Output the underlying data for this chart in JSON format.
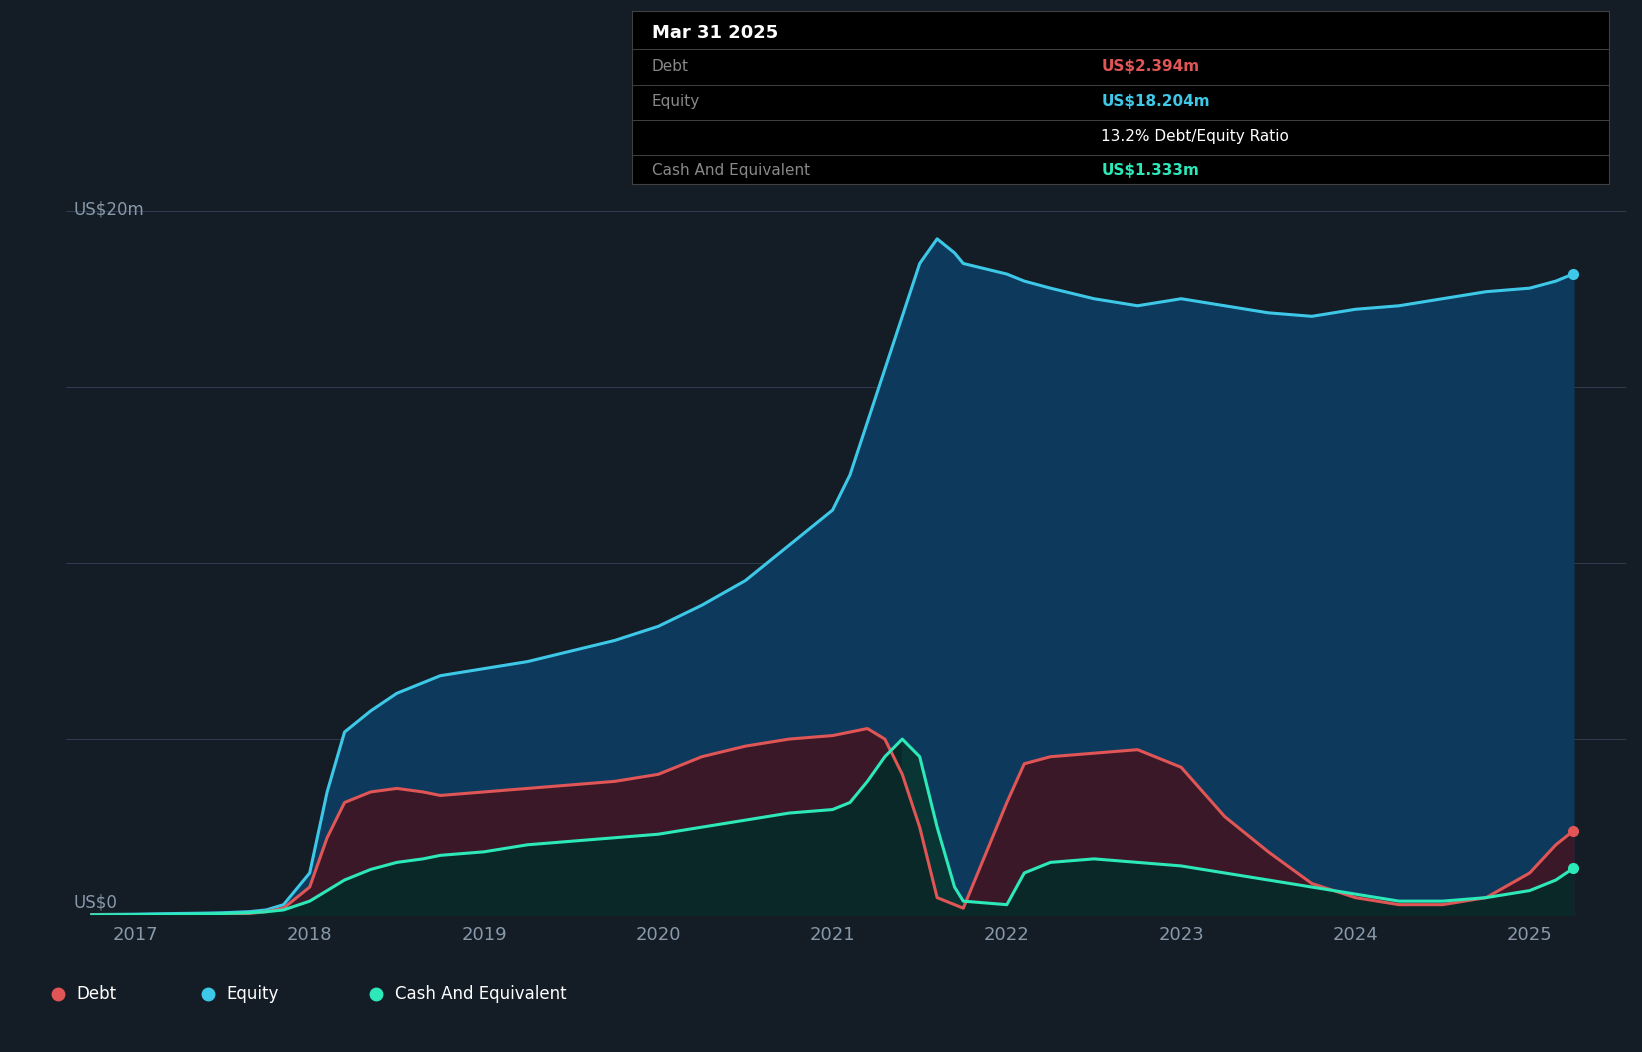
{
  "bg_color": "#141c26",
  "plot_bg_color": "#141c26",
  "grid_color": "#2e3d4f",
  "tooltip": {
    "date": "Mar 31 2025",
    "debt_label": "Debt",
    "debt_value": "US$2.394m",
    "equity_label": "Equity",
    "equity_value": "US$18.204m",
    "ratio_text": "13.2% Debt/Equity Ratio",
    "cash_label": "Cash And Equivalent",
    "cash_value": "US$1.333m"
  },
  "ylabel_top": "US$20m",
  "ylabel_bottom": "US$0",
  "xlim_start": 2016.6,
  "xlim_end": 2025.55,
  "ylim_min": 0,
  "ylim_max": 21.5,
  "debt_color": "#e05555",
  "equity_color": "#3ec8e8",
  "cash_color": "#2de8b8",
  "equity_fill_color": "#0d3a5c",
  "debt_fill_color": "#3a1828",
  "cash_fill_color": "#0a2828",
  "legend_bg": "#1e2a38",
  "x": [
    2016.75,
    2017.0,
    2017.1,
    2017.25,
    2017.4,
    2017.5,
    2017.65,
    2017.75,
    2017.85,
    2018.0,
    2018.1,
    2018.2,
    2018.35,
    2018.5,
    2018.65,
    2018.75,
    2019.0,
    2019.25,
    2019.5,
    2019.75,
    2020.0,
    2020.25,
    2020.5,
    2020.75,
    2021.0,
    2021.1,
    2021.2,
    2021.3,
    2021.4,
    2021.5,
    2021.6,
    2021.7,
    2021.75,
    2022.0,
    2022.1,
    2022.25,
    2022.5,
    2022.75,
    2023.0,
    2023.25,
    2023.5,
    2023.75,
    2024.0,
    2024.25,
    2024.5,
    2024.75,
    2025.0,
    2025.15,
    2025.25
  ],
  "equity": [
    0.02,
    0.03,
    0.04,
    0.05,
    0.06,
    0.07,
    0.1,
    0.15,
    0.3,
    1.2,
    3.5,
    5.2,
    5.8,
    6.3,
    6.6,
    6.8,
    7.0,
    7.2,
    7.5,
    7.8,
    8.2,
    8.8,
    9.5,
    10.5,
    11.5,
    12.5,
    14.0,
    15.5,
    17.0,
    18.5,
    19.2,
    18.8,
    18.5,
    18.2,
    18.0,
    17.8,
    17.5,
    17.3,
    17.5,
    17.3,
    17.1,
    17.0,
    17.2,
    17.3,
    17.5,
    17.7,
    17.8,
    18.0,
    18.204
  ],
  "debt": [
    0.01,
    0.01,
    0.01,
    0.02,
    0.02,
    0.03,
    0.05,
    0.1,
    0.2,
    0.8,
    2.2,
    3.2,
    3.5,
    3.6,
    3.5,
    3.4,
    3.5,
    3.6,
    3.7,
    3.8,
    4.0,
    4.5,
    4.8,
    5.0,
    5.1,
    5.2,
    5.3,
    5.0,
    4.0,
    2.5,
    0.5,
    0.3,
    0.2,
    3.2,
    4.3,
    4.5,
    4.6,
    4.7,
    4.2,
    2.8,
    1.8,
    0.9,
    0.5,
    0.3,
    0.3,
    0.5,
    1.2,
    2.0,
    2.394
  ],
  "cash": [
    0.01,
    0.02,
    0.02,
    0.03,
    0.04,
    0.05,
    0.07,
    0.1,
    0.15,
    0.4,
    0.7,
    1.0,
    1.3,
    1.5,
    1.6,
    1.7,
    1.8,
    2.0,
    2.1,
    2.2,
    2.3,
    2.5,
    2.7,
    2.9,
    3.0,
    3.2,
    3.8,
    4.5,
    5.0,
    4.5,
    2.5,
    0.8,
    0.4,
    0.3,
    1.2,
    1.5,
    1.6,
    1.5,
    1.4,
    1.2,
    1.0,
    0.8,
    0.6,
    0.4,
    0.4,
    0.5,
    0.7,
    1.0,
    1.333
  ],
  "xtick_labels": [
    "2017",
    "2018",
    "2019",
    "2020",
    "2021",
    "2022",
    "2023",
    "2024",
    "2025"
  ],
  "xtick_positions": [
    2017,
    2018,
    2019,
    2020,
    2021,
    2022,
    2023,
    2024,
    2025
  ]
}
